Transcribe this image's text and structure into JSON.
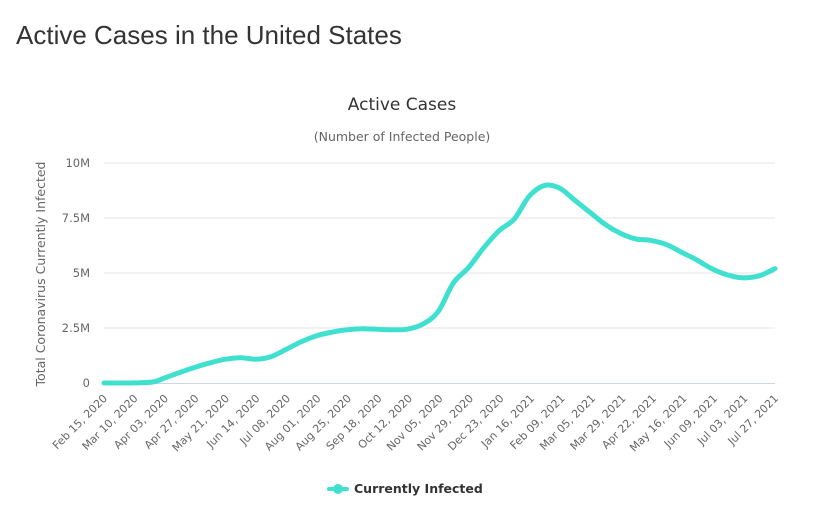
{
  "page": {
    "title": "Active Cases in the United States"
  },
  "colors": {
    "series": "#40e0d0",
    "grid": "#e6e6e6",
    "text": "#333333"
  },
  "chart_data": {
    "type": "line",
    "title": "Active Cases",
    "subtitle": "(Number of Infected People)",
    "xlabel": "",
    "ylabel": "Total Coronavirus Currently Infected",
    "ylim": [
      0,
      10000000
    ],
    "yticks": [
      {
        "value": 0,
        "label": "0"
      },
      {
        "value": 2500000,
        "label": "2.5M"
      },
      {
        "value": 5000000,
        "label": "5M"
      },
      {
        "value": 7500000,
        "label": "7.5M"
      },
      {
        "value": 10000000,
        "label": "10M"
      }
    ],
    "xlim": [
      "2020-02-15",
      "2021-07-29"
    ],
    "xticks": [
      "Feb 15, 2020",
      "Mar 10, 2020",
      "Apr 03, 2020",
      "Apr 27, 2020",
      "May 21, 2020",
      "Jun 14, 2020",
      "Jul 08, 2020",
      "Aug 01, 2020",
      "Aug 25, 2020",
      "Sep 18, 2020",
      "Oct 12, 2020",
      "Nov 05, 2020",
      "Nov 29, 2020",
      "Dec 23, 2020",
      "Jan 16, 2021",
      "Feb 09, 2021",
      "Mar 05, 2021",
      "Mar 29, 2021",
      "Apr 22, 2021",
      "May 16, 2021",
      "Jun 09, 2021",
      "Jul 03, 2021",
      "Jul 27, 2021"
    ],
    "grid": true,
    "legend_position": "bottom-center",
    "series": [
      {
        "name": "Currently Infected",
        "color": "#40e0d0",
        "points": [
          {
            "x": "2020-02-15",
            "y": 0
          },
          {
            "x": "2020-03-10",
            "y": 5000
          },
          {
            "x": "2020-03-25",
            "y": 50000
          },
          {
            "x": "2020-04-03",
            "y": 230000
          },
          {
            "x": "2020-04-15",
            "y": 480000
          },
          {
            "x": "2020-04-27",
            "y": 720000
          },
          {
            "x": "2020-05-09",
            "y": 920000
          },
          {
            "x": "2020-05-21",
            "y": 1080000
          },
          {
            "x": "2020-06-02",
            "y": 1150000
          },
          {
            "x": "2020-06-14",
            "y": 1080000
          },
          {
            "x": "2020-06-26",
            "y": 1200000
          },
          {
            "x": "2020-07-08",
            "y": 1530000
          },
          {
            "x": "2020-07-20",
            "y": 1880000
          },
          {
            "x": "2020-08-01",
            "y": 2150000
          },
          {
            "x": "2020-08-13",
            "y": 2310000
          },
          {
            "x": "2020-08-25",
            "y": 2420000
          },
          {
            "x": "2020-09-06",
            "y": 2470000
          },
          {
            "x": "2020-09-18",
            "y": 2440000
          },
          {
            "x": "2020-09-30",
            "y": 2420000
          },
          {
            "x": "2020-10-12",
            "y": 2450000
          },
          {
            "x": "2020-10-24",
            "y": 2680000
          },
          {
            "x": "2020-11-05",
            "y": 3250000
          },
          {
            "x": "2020-11-17",
            "y": 4550000
          },
          {
            "x": "2020-11-29",
            "y": 5250000
          },
          {
            "x": "2020-12-11",
            "y": 6150000
          },
          {
            "x": "2020-12-23",
            "y": 6920000
          },
          {
            "x": "2021-01-04",
            "y": 7450000
          },
          {
            "x": "2021-01-16",
            "y": 8500000
          },
          {
            "x": "2021-01-28",
            "y": 8980000
          },
          {
            "x": "2021-02-09",
            "y": 8850000
          },
          {
            "x": "2021-02-21",
            "y": 8300000
          },
          {
            "x": "2021-03-05",
            "y": 7750000
          },
          {
            "x": "2021-03-17",
            "y": 7200000
          },
          {
            "x": "2021-03-29",
            "y": 6800000
          },
          {
            "x": "2021-04-10",
            "y": 6550000
          },
          {
            "x": "2021-04-22",
            "y": 6480000
          },
          {
            "x": "2021-05-04",
            "y": 6300000
          },
          {
            "x": "2021-05-16",
            "y": 5950000
          },
          {
            "x": "2021-05-28",
            "y": 5600000
          },
          {
            "x": "2021-06-09",
            "y": 5200000
          },
          {
            "x": "2021-06-21",
            "y": 4920000
          },
          {
            "x": "2021-07-03",
            "y": 4780000
          },
          {
            "x": "2021-07-15",
            "y": 4850000
          },
          {
            "x": "2021-07-22",
            "y": 5000000
          },
          {
            "x": "2021-07-29",
            "y": 5200000
          }
        ]
      }
    ]
  }
}
